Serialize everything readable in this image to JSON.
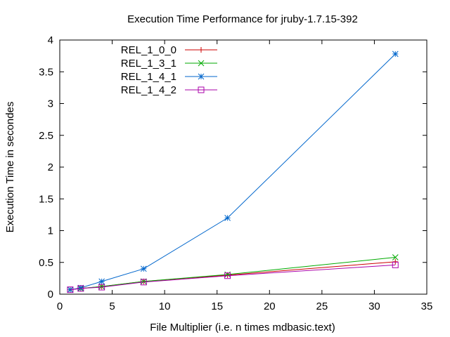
{
  "chart_data": {
    "type": "line",
    "title": "Execution Time Performance for jruby-1.7.15-392",
    "xlabel": "File Multiplier (i.e. n times mdbasic.text)",
    "ylabel": "Execution Time in secondes",
    "xlim": [
      0,
      35
    ],
    "ylim": [
      0,
      4
    ],
    "xticks": [
      0,
      5,
      10,
      15,
      20,
      25,
      30,
      35
    ],
    "yticks": [
      0,
      0.5,
      1,
      1.5,
      2,
      2.5,
      3,
      3.5,
      4
    ],
    "x": [
      1,
      2,
      4,
      8,
      16,
      32
    ],
    "grid": false,
    "legend_position": "top-left",
    "series": [
      {
        "name": "REL_1_0_0",
        "color": "#cc0000",
        "marker": "plus",
        "values": [
          0.07,
          0.09,
          0.12,
          0.2,
          0.3,
          0.51
        ]
      },
      {
        "name": "REL_1_3_1",
        "color": "#00aa00",
        "marker": "cross",
        "values": [
          0.07,
          0.09,
          0.12,
          0.2,
          0.31,
          0.58
        ]
      },
      {
        "name": "REL_1_4_1",
        "color": "#0066cc",
        "marker": "star",
        "values": [
          0.07,
          0.1,
          0.2,
          0.4,
          1.2,
          3.78
        ]
      },
      {
        "name": "REL_1_4_2",
        "color": "#aa00aa",
        "marker": "square",
        "values": [
          0.07,
          0.09,
          0.11,
          0.19,
          0.29,
          0.46
        ]
      }
    ]
  }
}
